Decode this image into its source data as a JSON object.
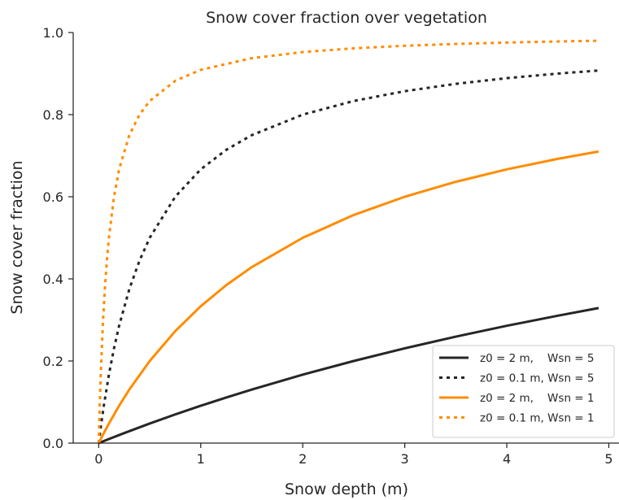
{
  "chart_data": {
    "type": "line",
    "title": "Snow cover fraction over vegetation",
    "xlabel": "Snow depth (m)",
    "ylabel": "Snow cover fraction",
    "xlim": [
      -0.25,
      5.1
    ],
    "ylim": [
      0.0,
      1.0
    ],
    "xticks": [
      0,
      1,
      2,
      3,
      4,
      5
    ],
    "xtick_labels": [
      "0",
      "1",
      "2",
      "3",
      "4",
      "5"
    ],
    "yticks": [
      0.0,
      0.2,
      0.4,
      0.6,
      0.8,
      1.0
    ],
    "ytick_labels": [
      "0.0",
      "0.2",
      "0.4",
      "0.6",
      "0.8",
      "1.0"
    ],
    "grid": false,
    "legend_position": "lower-right",
    "series": [
      {
        "name": "z0 = 2 m,    Wsn = 5",
        "color": "#262626",
        "dash": "solid",
        "x": [
          0,
          0.1,
          0.25,
          0.5,
          0.75,
          1.0,
          1.25,
          1.5,
          2.0,
          2.5,
          3.0,
          3.5,
          4.0,
          4.5,
          4.9
        ],
        "y": [
          0.0,
          0.0099,
          0.0244,
          0.0476,
          0.0698,
          0.0909,
          0.1111,
          0.1304,
          0.1667,
          0.2,
          0.2308,
          0.2593,
          0.2857,
          0.3103,
          0.3289
        ]
      },
      {
        "name": "z0 = 0.1 m, Wsn = 5",
        "color": "#262626",
        "dash": "dotted",
        "x": [
          0,
          0.02,
          0.05,
          0.1,
          0.15,
          0.2,
          0.3,
          0.4,
          0.5,
          0.75,
          1.0,
          1.25,
          1.5,
          2.0,
          2.5,
          3.0,
          3.5,
          4.0,
          4.5,
          4.9
        ],
        "y": [
          0.0,
          0.0385,
          0.0909,
          0.1667,
          0.2308,
          0.2857,
          0.375,
          0.4444,
          0.5,
          0.6,
          0.6667,
          0.7143,
          0.75,
          0.8,
          0.8333,
          0.8571,
          0.875,
          0.8889,
          0.9,
          0.9074
        ]
      },
      {
        "name": "z0 = 2 m,    Wsn = 1",
        "color": "#ff8c00",
        "dash": "solid",
        "x": [
          0,
          0.05,
          0.1,
          0.2,
          0.3,
          0.5,
          0.75,
          1.0,
          1.25,
          1.5,
          2.0,
          2.5,
          3.0,
          3.5,
          4.0,
          4.5,
          4.9
        ],
        "y": [
          0.0,
          0.0244,
          0.0476,
          0.0909,
          0.1304,
          0.2,
          0.2727,
          0.3333,
          0.3846,
          0.4286,
          0.5,
          0.5556,
          0.6,
          0.6364,
          0.6667,
          0.6923,
          0.7101
        ]
      },
      {
        "name": "z0 = 0.1 m, Wsn = 1",
        "color": "#ff8c00",
        "dash": "dotted",
        "x": [
          0,
          0.01,
          0.02,
          0.04,
          0.06,
          0.08,
          0.1,
          0.15,
          0.2,
          0.3,
          0.4,
          0.5,
          0.75,
          1.0,
          1.5,
          2.0,
          2.5,
          3.0,
          3.5,
          4.0,
          4.5,
          4.9
        ],
        "y": [
          0.0,
          0.0909,
          0.1667,
          0.2857,
          0.375,
          0.4444,
          0.5,
          0.6,
          0.6667,
          0.75,
          0.8,
          0.8333,
          0.8824,
          0.9091,
          0.9375,
          0.9524,
          0.9615,
          0.9677,
          0.9722,
          0.9756,
          0.9783,
          0.98
        ]
      }
    ]
  }
}
